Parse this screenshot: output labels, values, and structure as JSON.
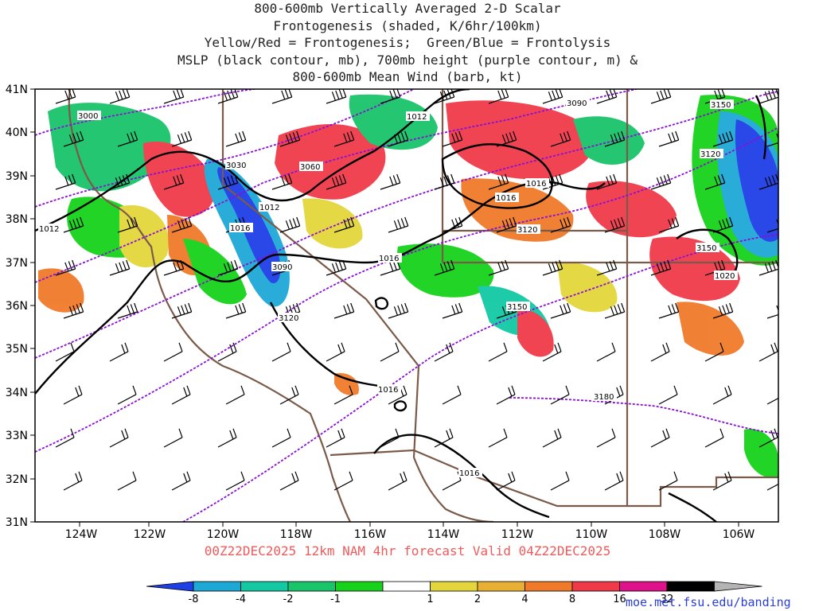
{
  "title_lines": [
    "800-600mb Vertically Averaged 2-D Scalar",
    "Frontogenesis (shaded, K/6hr/100km)",
    "Yellow/Red = Frontogenesis;  Green/Blue = Frontolysis",
    "MSLP (black contour, mb), 700mb height (purple contour, m) &",
    "800-600mb Mean Wind (barb, kt)"
  ],
  "lat_labels": [
    "41N",
    "40N",
    "39N",
    "38N",
    "37N",
    "36N",
    "35N",
    "34N",
    "33N",
    "32N",
    "31N"
  ],
  "lon_labels": [
    "124W",
    "122W",
    "120W",
    "118W",
    "116W",
    "114W",
    "112W",
    "110W",
    "108W",
    "106W"
  ],
  "valid_text": "00Z22DEC2025 12km NAM 4hr forecast Valid 04Z22DEC2025",
  "credit": "moe.met.fsu.edu/banding",
  "colorbar": {
    "labels": [
      "-8",
      "-4",
      "-2",
      "-1",
      "1",
      "2",
      "4",
      "8",
      "16",
      "32"
    ],
    "colors": [
      "#1f3fe6",
      "#1ea8d6",
      "#13c9a4",
      "#19c46a",
      "#16d21a",
      "#ffffff",
      "#e3d63c",
      "#e8b032",
      "#f07a2a",
      "#f03a4a",
      "#e0128a",
      "#000000",
      "#b4b4b4"
    ]
  },
  "mslp_labels": [
    {
      "text": "1012"
    },
    {
      "text": "1012"
    },
    {
      "text": "1012"
    },
    {
      "text": "1016"
    },
    {
      "text": "1016"
    },
    {
      "text": "1016"
    },
    {
      "text": "1016"
    },
    {
      "text": "1016"
    },
    {
      "text": "1016"
    },
    {
      "text": "1020"
    }
  ],
  "height_labels": [
    {
      "text": "3000"
    },
    {
      "text": "3030"
    },
    {
      "text": "3060"
    },
    {
      "text": "3090"
    },
    {
      "text": "3090"
    },
    {
      "text": "3120"
    },
    {
      "text": "3120"
    },
    {
      "text": "3120"
    },
    {
      "text": "3150"
    },
    {
      "text": "3150"
    },
    {
      "text": "3150"
    },
    {
      "text": "3180"
    }
  ],
  "colors": {
    "mslp": "#000000",
    "height": "#8a0fd6",
    "borders": "#7a5a48",
    "barb": "#000000",
    "valid_text": "#f05a5a",
    "credit": "#2b3fd6"
  }
}
